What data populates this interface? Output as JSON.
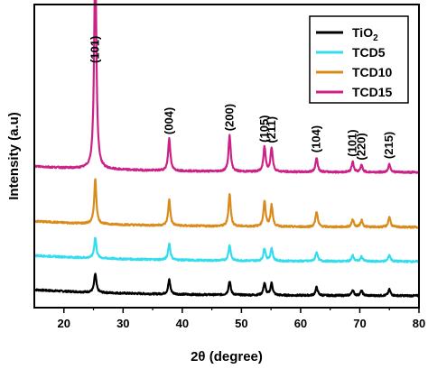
{
  "chart_data": {
    "type": "line",
    "title": "",
    "xlabel": "2θ (degree)",
    "ylabel": "Intensity (a.u)",
    "xlim": [
      15,
      80
    ],
    "xticks": [
      "20",
      "30",
      "40",
      "50",
      "60",
      "70",
      "80"
    ],
    "yticks_shown": false,
    "grid": false,
    "legend_position": "top-right",
    "series": [
      {
        "name": "TiO2",
        "legend_main": "TiO",
        "legend_sub": "2",
        "color": "#000000"
      },
      {
        "name": "TCD5",
        "legend_main": "TCD5",
        "legend_sub": "",
        "color": "#33ddee"
      },
      {
        "name": "TCD10",
        "legend_main": "TCD10",
        "legend_sub": "",
        "color": "#d98b1c"
      },
      {
        "name": "TCD15",
        "legend_main": "TCD15",
        "legend_sub": "",
        "color": "#cc2288"
      }
    ],
    "peaks": [
      {
        "position": 25.3,
        "label": "(101)"
      },
      {
        "position": 37.8,
        "label": "(004)"
      },
      {
        "position": 48.0,
        "label": "(200)"
      },
      {
        "position": 53.9,
        "label": "(105)"
      },
      {
        "position": 55.1,
        "label": "(211)"
      },
      {
        "position": 62.7,
        "label": "(104)"
      },
      {
        "position": 68.8,
        "label": "(101)"
      },
      {
        "position": 70.3,
        "label": "(220)"
      },
      {
        "position": 75.0,
        "label": "(215)"
      }
    ],
    "baselines_au": [
      0.0,
      1.0,
      2.0,
      3.6
    ],
    "peak_heights_au": {
      "TiO2": [
        0.55,
        0.42,
        0.4,
        0.35,
        0.35,
        0.24,
        0.16,
        0.14,
        0.18
      ],
      "TCD5": [
        0.6,
        0.48,
        0.46,
        0.37,
        0.37,
        0.27,
        0.17,
        0.14,
        0.19
      ],
      "TCD10": [
        1.3,
        0.75,
        0.95,
        0.75,
        0.62,
        0.45,
        0.22,
        0.2,
        0.3
      ],
      "TCD15": [
        6.4,
        0.95,
        1.05,
        0.72,
        0.7,
        0.42,
        0.3,
        0.2,
        0.24
      ]
    }
  }
}
